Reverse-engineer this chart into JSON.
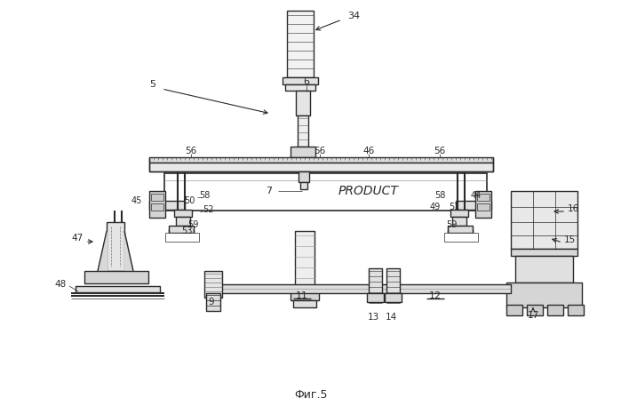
{
  "bg_color": "#ffffff",
  "line_color": "#2a2a2a",
  "fig_caption": "Фиг.5",
  "lw": 1.0,
  "thin": 0.5,
  "dpi": 100,
  "figw": 6.99,
  "figh": 4.57
}
